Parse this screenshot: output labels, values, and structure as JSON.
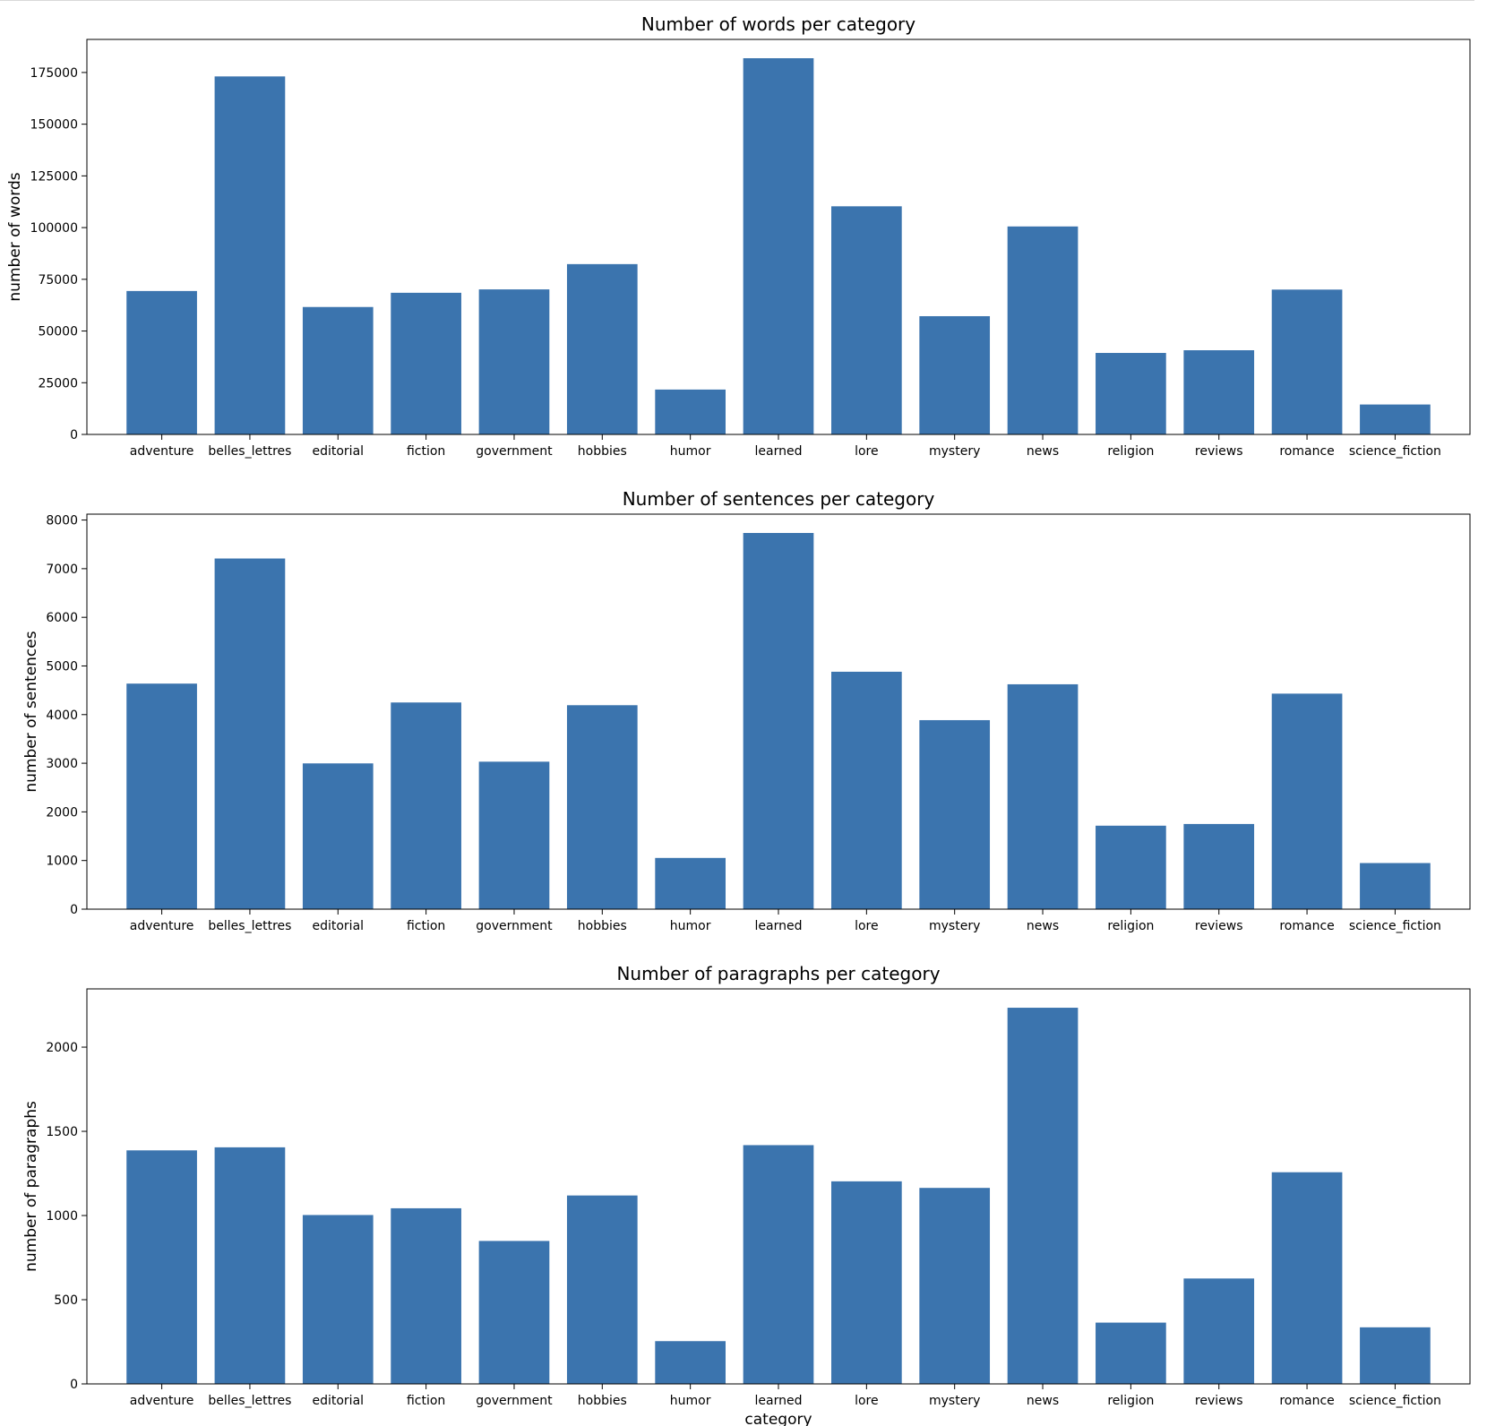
{
  "chart_data": [
    {
      "type": "bar",
      "title": "Number of words per category",
      "xlabel": "",
      "ylabel": "number of words",
      "categories": [
        "adventure",
        "belles_lettres",
        "editorial",
        "fiction",
        "government",
        "hobbies",
        "humor",
        "learned",
        "lore",
        "mystery",
        "news",
        "religion",
        "reviews",
        "romance",
        "science_fiction"
      ],
      "values": [
        69342,
        173096,
        61604,
        68488,
        70117,
        82345,
        21695,
        181888,
        110299,
        57169,
        100554,
        39399,
        40704,
        70022,
        14470
      ],
      "yticks": [
        0,
        25000,
        50000,
        75000,
        100000,
        125000,
        150000,
        175000
      ],
      "ylim": [
        0,
        190985
      ],
      "bar_color": "#3b74ae",
      "grid": false
    },
    {
      "type": "bar",
      "title": "Number of sentences per category",
      "xlabel": "",
      "ylabel": "number of sentences",
      "categories": [
        "adventure",
        "belles_lettres",
        "editorial",
        "fiction",
        "government",
        "hobbies",
        "humor",
        "learned",
        "lore",
        "mystery",
        "news",
        "religion",
        "reviews",
        "romance",
        "science_fiction"
      ],
      "values": [
        4637,
        7209,
        2997,
        4249,
        3032,
        4193,
        1053,
        7734,
        4881,
        3886,
        4623,
        1716,
        1751,
        4431,
        948
      ],
      "yticks": [
        0,
        1000,
        2000,
        3000,
        4000,
        5000,
        6000,
        7000,
        8000
      ],
      "ylim": [
        0,
        8121
      ],
      "bar_color": "#3b74ae",
      "grid": false
    },
    {
      "type": "bar",
      "title": "Number of paragraphs per category",
      "xlabel": "category",
      "ylabel": "number of paragraphs",
      "categories": [
        "adventure",
        "belles_lettres",
        "editorial",
        "fiction",
        "government",
        "hobbies",
        "humor",
        "learned",
        "lore",
        "mystery",
        "news",
        "religion",
        "reviews",
        "romance",
        "science_fiction"
      ],
      "values": [
        1387,
        1405,
        1003,
        1043,
        849,
        1119,
        254,
        1418,
        1203,
        1164,
        2234,
        364,
        626,
        1257,
        336
      ],
      "yticks": [
        0,
        500,
        1000,
        1500,
        2000
      ],
      "ylim": [
        0,
        2346
      ],
      "bar_color": "#3b74ae",
      "grid": false
    }
  ]
}
